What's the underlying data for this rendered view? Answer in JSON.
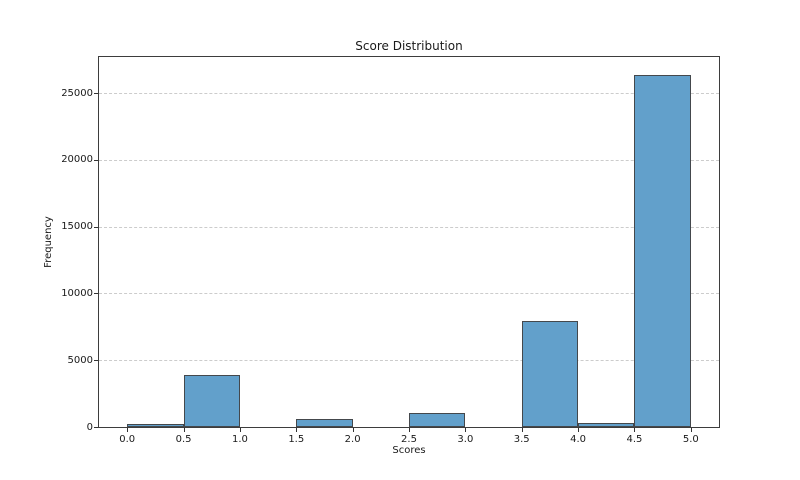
{
  "chart_data": {
    "type": "bar",
    "subtype": "histogram",
    "title": "Score Distribution",
    "xlabel": "Scores",
    "ylabel": "Frequency",
    "bin_edges": [
      0.0,
      0.5,
      1.0,
      1.5,
      2.0,
      2.5,
      3.0,
      3.5,
      4.0,
      4.5,
      5.0
    ],
    "values": [
      200,
      3900,
      0,
      600,
      0,
      1050,
      0,
      7950,
      280,
      26380
    ],
    "xlim": [
      -0.25,
      5.25
    ],
    "ylim": [
      0,
      27700
    ],
    "x_tick_values": [
      0.0,
      0.5,
      1.0,
      1.5,
      2.0,
      2.5,
      3.0,
      3.5,
      4.0,
      4.5,
      5.0
    ],
    "x_tick_labels": [
      "0.0",
      "0.5",
      "1.0",
      "1.5",
      "2.0",
      "2.5",
      "3.0",
      "3.5",
      "4.0",
      "4.5",
      "5.0"
    ],
    "y_tick_values": [
      0,
      5000,
      10000,
      15000,
      20000,
      25000
    ],
    "y_tick_labels": [
      "0",
      "5000",
      "10000",
      "15000",
      "20000",
      "25000"
    ],
    "grid": "horizontal-dashed",
    "legend": "none",
    "colors": {
      "bar_fill": "#62a0cb",
      "bar_edge": "#44484c",
      "grid_line": "#cccccc",
      "axis": "#3d3d3d",
      "text": "#1a1a1a",
      "background": "#ffffff"
    }
  }
}
